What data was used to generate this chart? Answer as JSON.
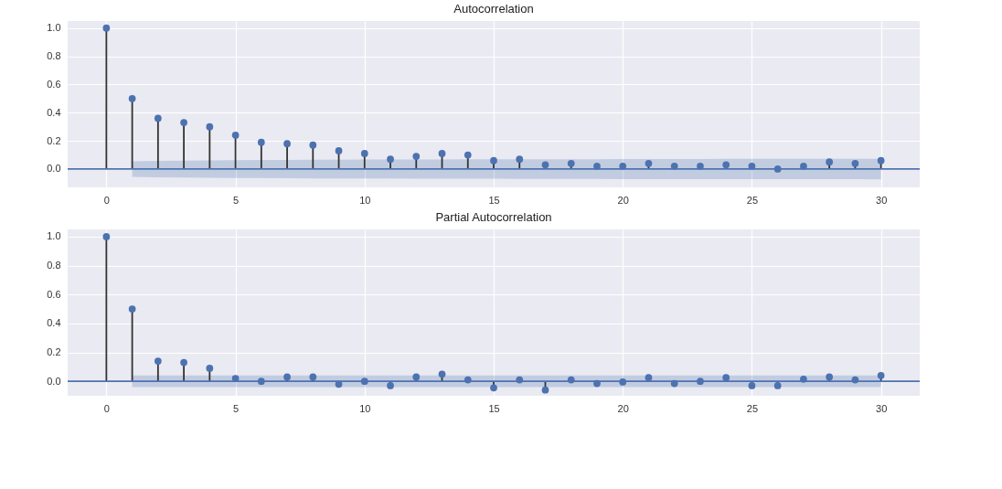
{
  "chart_data": [
    {
      "type": "lollipop",
      "title": "Autocorrelation",
      "x": [
        0,
        1,
        2,
        3,
        4,
        5,
        6,
        7,
        8,
        9,
        10,
        11,
        12,
        13,
        14,
        15,
        16,
        17,
        18,
        19,
        20,
        21,
        22,
        23,
        24,
        25,
        26,
        27,
        28,
        29,
        30
      ],
      "series": [
        {
          "color": "#4c72b0",
          "values": [
            1.0,
            0.5,
            0.36,
            0.33,
            0.3,
            0.24,
            0.19,
            0.18,
            0.17,
            0.13,
            0.11,
            0.07,
            0.09,
            0.11,
            0.1,
            0.06,
            0.07,
            0.03,
            0.04,
            0.02,
            0.02,
            0.04,
            0.02,
            0.02,
            0.03,
            0.02,
            0.0,
            0.02,
            0.05,
            0.04,
            0.06
          ],
          "lower": [
            null,
            -0.055,
            -0.058,
            -0.06,
            -0.062,
            -0.063,
            -0.064,
            -0.065,
            -0.066,
            -0.066,
            -0.067,
            -0.067,
            -0.068,
            -0.068,
            -0.069,
            -0.069,
            -0.07,
            -0.07,
            -0.07,
            -0.07,
            -0.071,
            -0.071,
            -0.071,
            -0.071,
            -0.072,
            -0.072,
            -0.072,
            -0.072,
            -0.072,
            -0.072,
            -0.073
          ],
          "upper": [
            null,
            0.055,
            0.058,
            0.06,
            0.062,
            0.063,
            0.064,
            0.065,
            0.066,
            0.066,
            0.067,
            0.067,
            0.068,
            0.068,
            0.069,
            0.069,
            0.07,
            0.07,
            0.07,
            0.07,
            0.071,
            0.071,
            0.071,
            0.071,
            0.072,
            0.072,
            0.072,
            0.072,
            0.072,
            0.072,
            0.073
          ]
        }
      ],
      "xlim": [
        -1.5,
        31.5
      ],
      "xticks": [
        0,
        5,
        10,
        15,
        20,
        25,
        30
      ],
      "ylim": [
        -0.13,
        1.05
      ],
      "yticks": [
        {
          "value": 0,
          "label": "0.0"
        },
        {
          "value": 0.2,
          "label": "0.2"
        },
        {
          "value": 0.4,
          "label": "0.4"
        },
        {
          "value": 0.6,
          "label": "0.6"
        },
        {
          "value": 0.8,
          "label": "0.8"
        },
        {
          "value": 1,
          "label": "1.0"
        }
      ],
      "grid": true,
      "marker": "circle",
      "ref_lines": [
        {
          "axis": "y",
          "value": 0,
          "color": "#4c72b0"
        }
      ]
    },
    {
      "type": "lollipop",
      "title": "Partial Autocorrelation",
      "x": [
        0,
        1,
        2,
        3,
        4,
        5,
        6,
        7,
        8,
        9,
        10,
        11,
        12,
        13,
        14,
        15,
        16,
        17,
        18,
        19,
        20,
        21,
        22,
        23,
        24,
        25,
        26,
        27,
        28,
        29,
        30
      ],
      "series": [
        {
          "color": "#4c72b0",
          "values": [
            1.0,
            0.5,
            0.14,
            0.13,
            0.09,
            0.02,
            0.0,
            0.03,
            0.03,
            -0.02,
            0.0,
            -0.03,
            0.03,
            0.05,
            0.01,
            -0.045,
            0.01,
            -0.06,
            0.01,
            -0.015,
            -0.005,
            0.025,
            -0.015,
            0.0,
            0.025,
            -0.03,
            -0.03,
            0.015,
            0.03,
            0.01,
            0.04
          ],
          "lower": [
            null,
            -0.04,
            -0.04,
            -0.04,
            -0.04,
            -0.04,
            -0.04,
            -0.04,
            -0.04,
            -0.04,
            -0.04,
            -0.04,
            -0.04,
            -0.04,
            -0.04,
            -0.04,
            -0.04,
            -0.04,
            -0.04,
            -0.04,
            -0.04,
            -0.04,
            -0.04,
            -0.04,
            -0.04,
            -0.04,
            -0.04,
            -0.04,
            -0.04,
            -0.04,
            -0.04
          ],
          "upper": [
            null,
            0.04,
            0.04,
            0.04,
            0.04,
            0.04,
            0.04,
            0.04,
            0.04,
            0.04,
            0.04,
            0.04,
            0.04,
            0.04,
            0.04,
            0.04,
            0.04,
            0.04,
            0.04,
            0.04,
            0.04,
            0.04,
            0.04,
            0.04,
            0.04,
            0.04,
            0.04,
            0.04,
            0.04,
            0.04,
            0.04
          ]
        }
      ],
      "xlim": [
        -1.5,
        31.5
      ],
      "xticks": [
        0,
        5,
        10,
        15,
        20,
        25,
        30
      ],
      "ylim": [
        -0.1,
        1.05
      ],
      "yticks": [
        {
          "value": 0,
          "label": "0.0"
        },
        {
          "value": 0.2,
          "label": "0.2"
        },
        {
          "value": 0.4,
          "label": "0.4"
        },
        {
          "value": 0.6,
          "label": "0.6"
        },
        {
          "value": 0.8,
          "label": "0.8"
        },
        {
          "value": 1,
          "label": "1.0"
        }
      ],
      "grid": true,
      "marker": "circle",
      "ref_lines": [
        {
          "axis": "y",
          "value": 0,
          "color": "#4c72b0"
        }
      ]
    }
  ]
}
